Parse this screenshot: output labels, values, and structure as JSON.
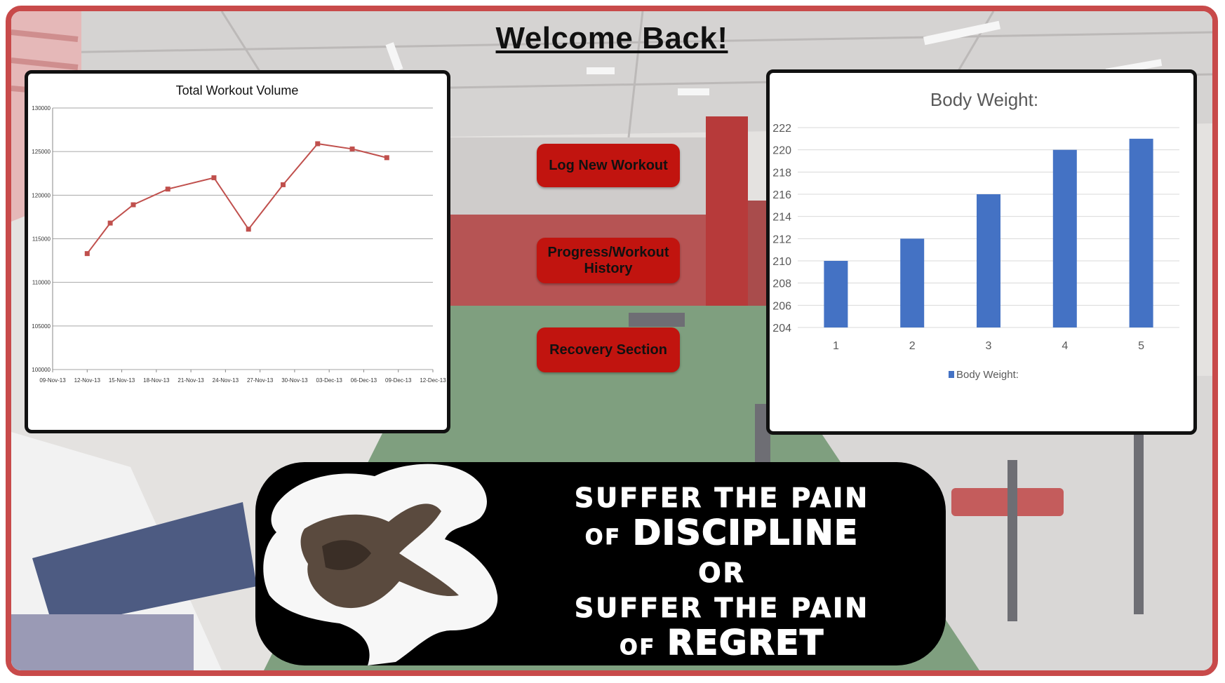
{
  "page": {
    "title": "Welcome Back!"
  },
  "buttons": {
    "log_workout": "Log New Workout",
    "progress_history": "Progress/Workout History",
    "recovery": "Recovery Section"
  },
  "motto": {
    "line1": "SUFFER THE PAIN",
    "line2_small": "OF",
    "line2_big": "DISCIPLINE",
    "line3": "OR",
    "line4": "SUFFER THE PAIN",
    "line5_small": "OF",
    "line5_big": "REGRET"
  },
  "colors": {
    "frame": "#c84a4a",
    "button": "#c1140f",
    "line_series": "#c0504d",
    "bar_series": "#4472c4"
  },
  "chart_data": [
    {
      "type": "line",
      "title": "Total Workout Volume",
      "x": [
        "09-Nov-13",
        "12-Nov-13",
        "15-Nov-13",
        "18-Nov-13",
        "21-Nov-13",
        "24-Nov-13",
        "27-Nov-13",
        "30-Nov-13",
        "03-Dec-13",
        "06-Dec-13",
        "09-Dec-13",
        "12-Dec-13"
      ],
      "y_ticks": [
        100000,
        105000,
        110000,
        115000,
        120000,
        125000,
        130000
      ],
      "ylim": [
        100000,
        130000
      ],
      "grid": true,
      "series": [
        {
          "points": [
            [
              "12-Nov-13",
              113300
            ],
            [
              "14-Nov-13",
              116800
            ],
            [
              "16-Nov-13",
              118900
            ],
            [
              "19-Nov-13",
              120700
            ],
            [
              "23-Nov-13",
              122000
            ],
            [
              "26-Nov-13",
              116100
            ],
            [
              "29-Nov-13",
              121200
            ],
            [
              "02-Dec-13",
              125900
            ],
            [
              "05-Dec-13",
              125300
            ],
            [
              "08-Dec-13",
              124300
            ]
          ]
        }
      ]
    },
    {
      "type": "bar",
      "title": "Body Weight:",
      "categories": [
        "1",
        "2",
        "3",
        "4",
        "5"
      ],
      "series": [
        {
          "name": "Body Weight:",
          "values": [
            210,
            212,
            216,
            220,
            221
          ]
        }
      ],
      "y_ticks": [
        204,
        206,
        208,
        210,
        212,
        214,
        216,
        218,
        220,
        222
      ],
      "ylim": [
        204,
        222
      ],
      "grid": true,
      "legend": "bottom"
    }
  ]
}
